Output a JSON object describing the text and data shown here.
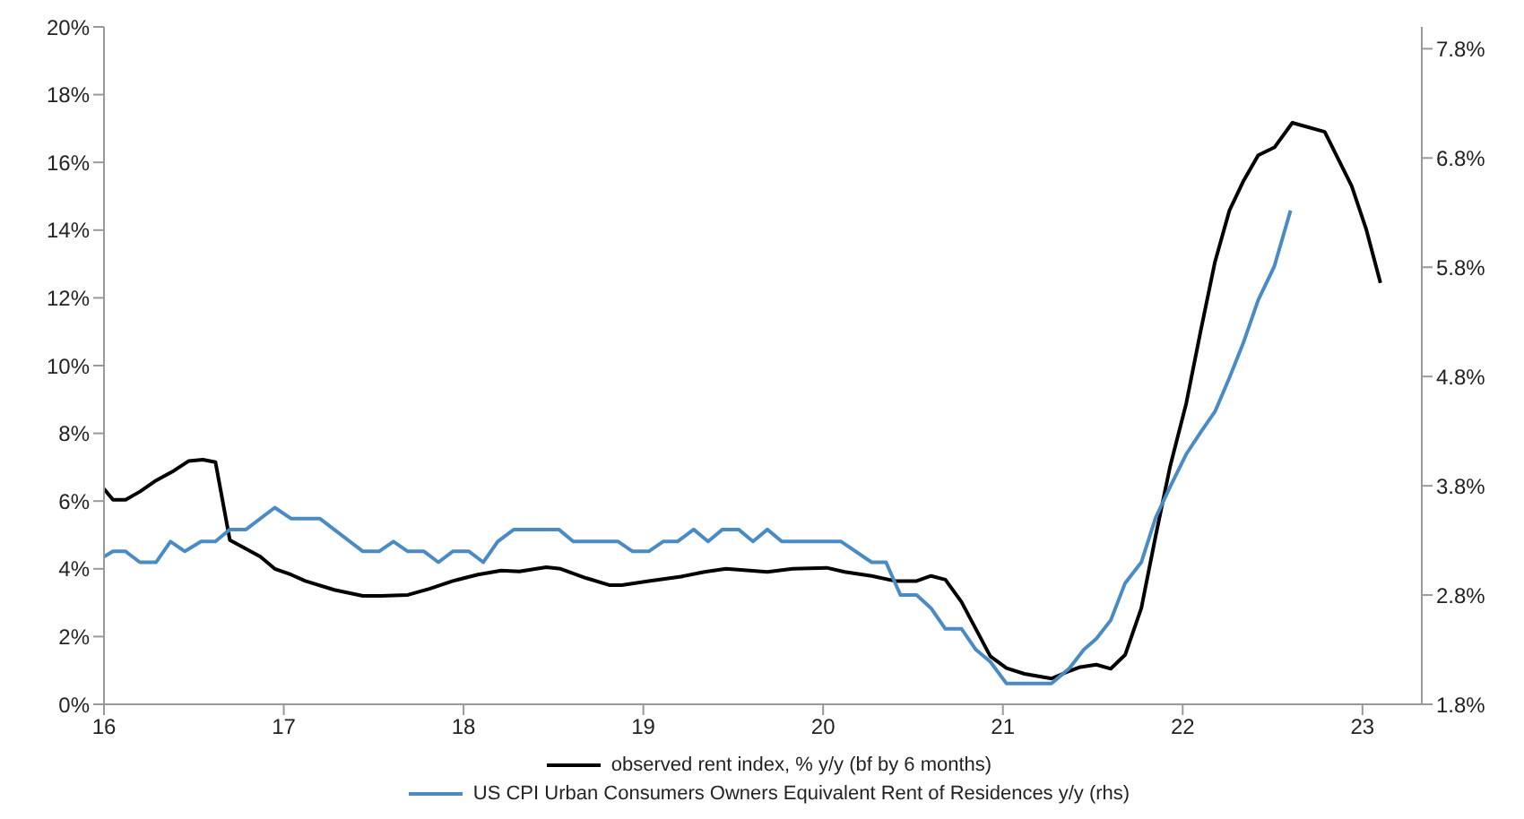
{
  "chart_data": {
    "type": "line",
    "xlim": [
      16,
      23.33
    ],
    "xticks": [
      16,
      17,
      18,
      19,
      20,
      21,
      22,
      23
    ],
    "ylim": [
      0,
      20
    ],
    "yticks": [
      {
        "value": 0,
        "label": "0%"
      },
      {
        "value": 2,
        "label": "2%"
      },
      {
        "value": 4,
        "label": "4%"
      },
      {
        "value": 6,
        "label": "6%"
      },
      {
        "value": 8,
        "label": "8%"
      },
      {
        "value": 10,
        "label": "10%"
      },
      {
        "value": 12,
        "label": "12%"
      },
      {
        "value": 14,
        "label": "14%"
      },
      {
        "value": 16,
        "label": "16%"
      },
      {
        "value": 18,
        "label": "18%"
      },
      {
        "value": 20,
        "label": "20%"
      }
    ],
    "y2lim": [
      1.8,
      8.0
    ],
    "y2ticks": [
      {
        "value": 1.8,
        "label": "1.8%"
      },
      {
        "value": 2.8,
        "label": "2.8%"
      },
      {
        "value": 3.8,
        "label": "3.8%"
      },
      {
        "value": 4.8,
        "label": "4.8%"
      },
      {
        "value": 5.8,
        "label": "5.8%"
      },
      {
        "value": 6.8,
        "label": "6.8%"
      },
      {
        "value": 7.8,
        "label": "7.8%"
      }
    ],
    "grid": false,
    "legend": "bottom",
    "marker": "none",
    "line_style": "solid",
    "series": [
      {
        "name": "observed rent index, % y/y (bf by 6 months)",
        "color": "#000000",
        "x": [
          16.0,
          16.05,
          16.12,
          16.2,
          16.29,
          16.39,
          16.47,
          16.55,
          16.62,
          16.7,
          16.79,
          16.87,
          16.95,
          17.04,
          17.12,
          17.28,
          17.44,
          17.54,
          17.69,
          17.81,
          17.94,
          18.08,
          18.21,
          18.31,
          18.46,
          18.54,
          18.68,
          18.81,
          18.88,
          19.03,
          19.21,
          19.34,
          19.46,
          19.69,
          19.83,
          20.02,
          20.12,
          20.27,
          20.4,
          20.52,
          20.6,
          20.68,
          20.77,
          20.85,
          20.93,
          21.02,
          21.12,
          21.27,
          21.35,
          21.43,
          21.52,
          21.6,
          21.68,
          21.77,
          21.85,
          21.93,
          22.02,
          22.1,
          22.18,
          22.26,
          22.34,
          22.42,
          22.51,
          22.61,
          22.79,
          22.94,
          23.02,
          23.1
        ],
        "values": [
          6.36,
          6.04,
          6.04,
          6.28,
          6.61,
          6.9,
          7.18,
          7.22,
          7.15,
          4.85,
          4.59,
          4.36,
          4.0,
          3.83,
          3.64,
          3.38,
          3.2,
          3.2,
          3.23,
          3.41,
          3.64,
          3.83,
          3.95,
          3.92,
          4.05,
          4.0,
          3.73,
          3.52,
          3.52,
          3.64,
          3.77,
          3.91,
          4.0,
          3.91,
          4.0,
          4.03,
          3.91,
          3.79,
          3.64,
          3.64,
          3.79,
          3.68,
          3.02,
          2.22,
          1.42,
          1.07,
          0.9,
          0.76,
          0.94,
          1.1,
          1.17,
          1.05,
          1.46,
          2.84,
          4.98,
          7.02,
          8.89,
          11.02,
          13.07,
          14.58,
          15.47,
          16.21,
          16.44,
          17.17,
          16.9,
          15.3,
          14.04,
          12.44
        ]
      },
      {
        "name": "US CPI Urban Consumers Owners Equivalent Rent of Residences y/y (rhs)",
        "color": "#4a8bc4",
        "axis": "y2",
        "x": [
          16.0,
          16.05,
          16.12,
          16.2,
          16.29,
          16.37,
          16.45,
          16.54,
          16.62,
          16.7,
          16.79,
          16.95,
          17.04,
          17.2,
          17.44,
          17.53,
          17.61,
          17.69,
          17.78,
          17.86,
          17.94,
          18.03,
          18.11,
          18.19,
          18.28,
          18.53,
          18.61,
          18.86,
          18.94,
          19.03,
          19.11,
          19.19,
          19.28,
          19.36,
          19.44,
          19.53,
          19.61,
          19.69,
          19.77,
          20.1,
          20.27,
          20.35,
          20.43,
          20.52,
          20.6,
          20.68,
          20.77,
          20.85,
          20.93,
          21.02,
          21.27,
          21.37,
          21.45,
          21.52,
          21.6,
          21.68,
          21.77,
          21.85,
          21.93,
          22.02,
          22.1,
          22.18,
          22.26,
          22.34,
          22.42,
          22.51,
          22.6
        ],
        "values": [
          3.15,
          3.2,
          3.2,
          3.1,
          3.1,
          3.29,
          3.2,
          3.29,
          3.29,
          3.4,
          3.4,
          3.6,
          3.5,
          3.5,
          3.2,
          3.2,
          3.29,
          3.2,
          3.2,
          3.1,
          3.2,
          3.2,
          3.1,
          3.29,
          3.4,
          3.4,
          3.29,
          3.29,
          3.2,
          3.2,
          3.29,
          3.29,
          3.4,
          3.29,
          3.4,
          3.4,
          3.29,
          3.4,
          3.29,
          3.29,
          3.1,
          3.1,
          2.8,
          2.8,
          2.68,
          2.49,
          2.49,
          2.3,
          2.19,
          1.99,
          1.99,
          2.13,
          2.3,
          2.4,
          2.57,
          2.91,
          3.1,
          3.51,
          3.79,
          4.09,
          4.29,
          4.48,
          4.79,
          5.12,
          5.5,
          5.81,
          6.32
        ]
      }
    ]
  }
}
